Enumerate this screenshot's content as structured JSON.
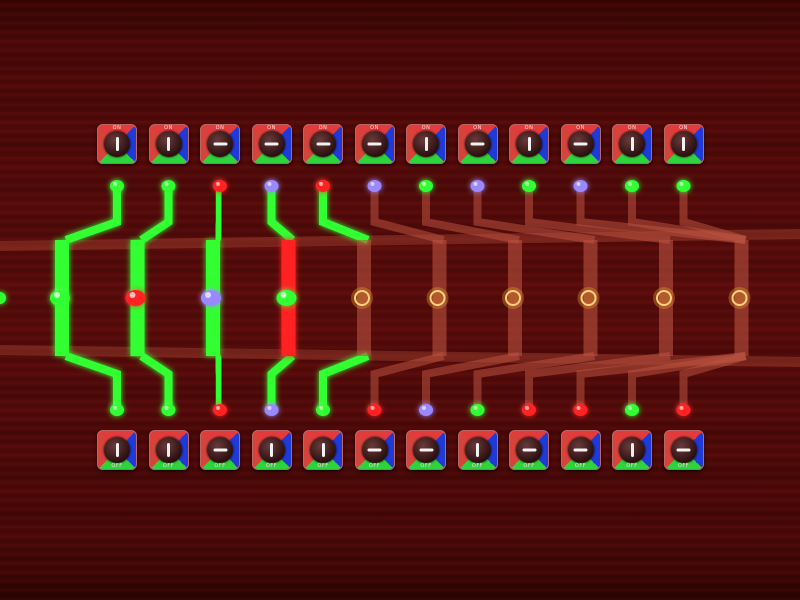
{
  "top_switches": [
    {
      "label": "ON",
      "lever": "vertical"
    },
    {
      "label": "ON",
      "lever": "vertical"
    },
    {
      "label": "ON",
      "lever": "horizontal"
    },
    {
      "label": "ON",
      "lever": "horizontal"
    },
    {
      "label": "ON",
      "lever": "horizontal"
    },
    {
      "label": "ON",
      "lever": "horizontal"
    },
    {
      "label": "ON",
      "lever": "vertical"
    },
    {
      "label": "ON",
      "lever": "horizontal"
    },
    {
      "label": "ON",
      "lever": "vertical"
    },
    {
      "label": "ON",
      "lever": "horizontal"
    },
    {
      "label": "ON",
      "lever": "vertical"
    },
    {
      "label": "ON",
      "lever": "vertical"
    }
  ],
  "bottom_switches": [
    {
      "label": "OFF",
      "lever": "vertical"
    },
    {
      "label": "OFF",
      "lever": "vertical"
    },
    {
      "label": "OFF",
      "lever": "horizontal"
    },
    {
      "label": "OFF",
      "lever": "vertical"
    },
    {
      "label": "OFF",
      "lever": "vertical"
    },
    {
      "label": "OFF",
      "lever": "horizontal"
    },
    {
      "label": "OFF",
      "lever": "horizontal"
    },
    {
      "label": "OFF",
      "lever": "vertical"
    },
    {
      "label": "OFF",
      "lever": "horizontal"
    },
    {
      "label": "OFF",
      "lever": "horizontal"
    },
    {
      "label": "OFF",
      "lever": "vertical"
    },
    {
      "label": "OFF",
      "lever": "horizontal"
    }
  ],
  "top_leds": [
    "green",
    "green",
    "red",
    "violet",
    "red",
    "violet",
    "green",
    "violet",
    "green",
    "violet",
    "green",
    "green"
  ],
  "bottom_leds": [
    "green",
    "green",
    "red",
    "violet",
    "green",
    "red",
    "violet",
    "green",
    "red",
    "red",
    "green",
    "red"
  ],
  "top_wire_lit": [
    true,
    true,
    true,
    true,
    true,
    false,
    false,
    false,
    false,
    false,
    false,
    false
  ],
  "bottom_wire_lit": [
    true,
    true,
    true,
    true,
    true,
    false,
    false,
    false,
    false,
    false,
    false,
    false
  ],
  "center_stages": [
    {
      "bulb": "green",
      "wire": "green",
      "lit": true
    },
    {
      "bulb": "red",
      "wire": "green",
      "lit": true
    },
    {
      "bulb": "violet",
      "wire": "green",
      "lit": true
    },
    {
      "bulb": "green",
      "wire": "red",
      "lit": true
    },
    {
      "bulb": "off",
      "wire": "off",
      "lit": false
    },
    {
      "bulb": "off",
      "wire": "off",
      "lit": false
    },
    {
      "bulb": "off",
      "wire": "off",
      "lit": false
    },
    {
      "bulb": "off",
      "wire": "off",
      "lit": false
    },
    {
      "bulb": "off",
      "wire": "off",
      "lit": false
    },
    {
      "bulb": "off",
      "wire": "off",
      "lit": false
    }
  ],
  "colors": {
    "green": "#33ff33",
    "red": "#ff2222",
    "violet": "#9a88ff",
    "off_wire": "#b9523f",
    "off_bulb": "#f0a030",
    "board": "#5b0b0a"
  }
}
